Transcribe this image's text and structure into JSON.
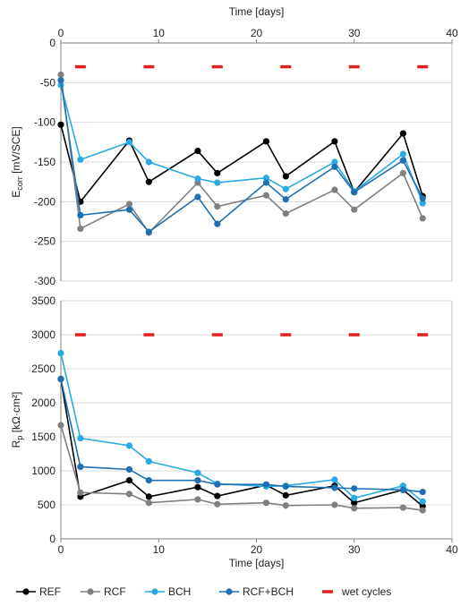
{
  "chart_data": [
    {
      "type": "line",
      "xlabel": "Time [days]",
      "ylabel_main": "E",
      "ylabel_sub": "corr",
      "ylabel_rest": " [mV/SCE]",
      "x_axis_position": "top",
      "xlim": [
        0,
        40
      ],
      "ylim": [
        -300,
        0
      ],
      "xticks": [
        0,
        10,
        20,
        30,
        40
      ],
      "yticks": [
        0,
        -50,
        -100,
        -150,
        -200,
        -250,
        -300
      ],
      "grid": true,
      "series": [
        {
          "name": "REF",
          "color": "#000000",
          "x": [
            0,
            2,
            7,
            9,
            14,
            16,
            21,
            23,
            28,
            30,
            35,
            37
          ],
          "y": [
            -103,
            -200,
            -123,
            -175,
            -136,
            -164,
            -124,
            -168,
            -124,
            -188,
            -114,
            -193
          ]
        },
        {
          "name": "RCF",
          "color": "#808080",
          "x": [
            0,
            2,
            7,
            9,
            14,
            16,
            21,
            23,
            28,
            30,
            35,
            37
          ],
          "y": [
            -40,
            -234,
            -203,
            -239,
            -176,
            -206,
            -192,
            -215,
            -185,
            -210,
            -164,
            -221
          ]
        },
        {
          "name": "BCH",
          "color": "#29abe2",
          "x": [
            0,
            2,
            7,
            9,
            14,
            16,
            21,
            23,
            28,
            30,
            35,
            37
          ],
          "y": [
            -53,
            -147,
            -125,
            -150,
            -171,
            -176,
            -170,
            -184,
            -150,
            -187,
            -140,
            -202
          ]
        },
        {
          "name": "RCF+BCH",
          "color": "#1f6fb2",
          "x": [
            0,
            2,
            7,
            9,
            14,
            16,
            21,
            23,
            28,
            30,
            35,
            37
          ],
          "y": [
            -47,
            -217,
            -210,
            -238,
            -194,
            -228,
            -176,
            -197,
            -156,
            -188,
            -148,
            -196
          ]
        }
      ],
      "wet_cycles": {
        "name": "wet cycles",
        "color": "#e02020",
        "y": -30,
        "x": [
          2,
          9,
          16,
          23,
          30,
          37
        ]
      }
    },
    {
      "type": "line",
      "xlabel": "Time [days]",
      "ylabel_main": "R",
      "ylabel_sub": "p",
      "ylabel_rest": " [kΩ·cm²]",
      "x_axis_position": "bottom",
      "xlim": [
        0,
        40
      ],
      "ylim": [
        0,
        3500
      ],
      "xticks": [
        0,
        10,
        20,
        30,
        40
      ],
      "yticks": [
        0,
        500,
        1000,
        1500,
        2000,
        2500,
        3000,
        3500
      ],
      "grid": true,
      "series": [
        {
          "name": "REF",
          "color": "#000000",
          "x": [
            0,
            2,
            7,
            9,
            14,
            16,
            21,
            23,
            28,
            30,
            35,
            37
          ],
          "y": [
            2350,
            620,
            860,
            620,
            760,
            630,
            790,
            640,
            780,
            530,
            720,
            480
          ]
        },
        {
          "name": "RCF",
          "color": "#808080",
          "x": [
            0,
            2,
            7,
            9,
            14,
            16,
            21,
            23,
            28,
            30,
            35,
            37
          ],
          "y": [
            1670,
            680,
            660,
            530,
            580,
            510,
            530,
            490,
            500,
            450,
            460,
            420
          ]
        },
        {
          "name": "BCH",
          "color": "#29abe2",
          "x": [
            0,
            2,
            7,
            9,
            14,
            16,
            21,
            23,
            28,
            30,
            35,
            37
          ],
          "y": [
            2730,
            1480,
            1370,
            1140,
            970,
            810,
            770,
            780,
            870,
            600,
            780,
            550
          ]
        },
        {
          "name": "RCF+BCH",
          "color": "#1f6fb2",
          "x": [
            0,
            2,
            7,
            9,
            14,
            16,
            21,
            23,
            28,
            30,
            35,
            37
          ],
          "y": [
            2350,
            1060,
            1020,
            860,
            860,
            800,
            800,
            770,
            750,
            740,
            720,
            690
          ]
        }
      ],
      "wet_cycles": {
        "name": "wet cycles",
        "color": "#e02020",
        "y": 3000,
        "x": [
          2,
          9,
          16,
          23,
          30,
          37
        ]
      }
    }
  ],
  "legend": {
    "placement": "bottom",
    "entries": [
      {
        "label": "REF",
        "color": "#000000",
        "kind": "line-marker"
      },
      {
        "label": "RCF",
        "color": "#808080",
        "kind": "line-marker"
      },
      {
        "label": "BCH",
        "color": "#29abe2",
        "kind": "line-marker"
      },
      {
        "label": "RCF+BCH",
        "color": "#1f6fb2",
        "kind": "line-marker"
      },
      {
        "label": "wet cycles",
        "color": "#e02020",
        "kind": "dash"
      }
    ]
  }
}
